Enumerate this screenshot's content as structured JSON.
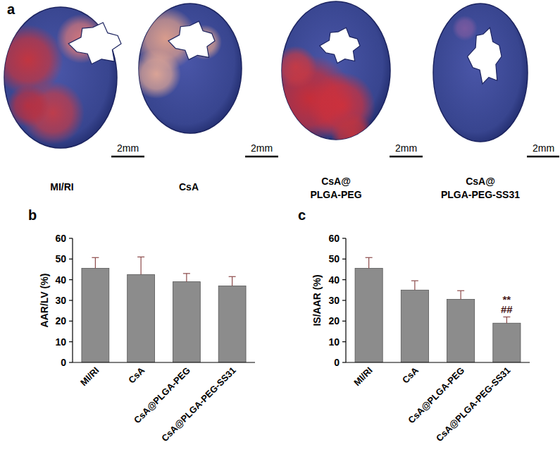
{
  "panel_a": {
    "label": "a",
    "images": [
      {
        "label_lines": [
          "MI/RI"
        ],
        "scale_bar": "2mm"
      },
      {
        "label_lines": [
          "CsA"
        ],
        "scale_bar": "2mm"
      },
      {
        "label_lines": [
          "CsA@",
          "PLGA-PEG"
        ],
        "scale_bar": "2mm"
      },
      {
        "label_lines": [
          "CsA@",
          "PLGA-PEG-SS31"
        ],
        "scale_bar": "2mm"
      }
    ]
  },
  "chart_data": [
    {
      "type": "bar",
      "title": "b",
      "y_label": "AAR/LV (%)",
      "categories": [
        "MI/RI",
        "CsA",
        "CsA@PLGA-PEG",
        "CsA@PLGA-PEG-SS31"
      ],
      "values": [
        45.5,
        42.5,
        39,
        37
      ],
      "errors": [
        5.2,
        8.5,
        4,
        4.5
      ],
      "color": "#8c8c8c",
      "ylim": [
        0,
        60
      ],
      "yticks": [
        0,
        10,
        20,
        30,
        40,
        50,
        60
      ],
      "grid": false
    },
    {
      "type": "bar",
      "title": "c",
      "y_label": "IS/AAR (%)",
      "categories": [
        "MI/RI",
        "CsA",
        "CsA@PLGA-PEG",
        "CsA@PLGA-PEG-SS31"
      ],
      "values": [
        45.5,
        35,
        30.5,
        19
      ],
      "errors": [
        5.2,
        4.5,
        4.2,
        3
      ],
      "color": "#8c8c8c",
      "ylim": [
        0,
        60
      ],
      "yticks": [
        0,
        10,
        20,
        30,
        40,
        50,
        60
      ],
      "grid": false,
      "annotations": [
        {
          "category": "CsA@PLGA-PEG-SS31",
          "text": "**"
        },
        {
          "category": "CsA@PLGA-PEG-SS31",
          "text": "##"
        }
      ]
    }
  ]
}
